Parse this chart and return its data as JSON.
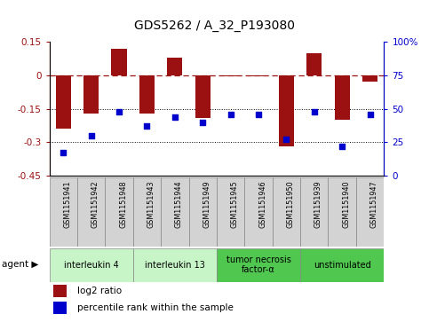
{
  "title": "GDS5262 / A_32_P193080",
  "samples": [
    "GSM1151941",
    "GSM1151942",
    "GSM1151948",
    "GSM1151943",
    "GSM1151944",
    "GSM1151949",
    "GSM1151945",
    "GSM1151946",
    "GSM1151950",
    "GSM1151939",
    "GSM1151940",
    "GSM1151947"
  ],
  "log2_ratio": [
    -0.24,
    -0.17,
    0.12,
    -0.17,
    0.08,
    -0.19,
    -0.005,
    -0.005,
    -0.32,
    0.1,
    -0.2,
    -0.03
  ],
  "percentile": [
    17,
    30,
    48,
    37,
    44,
    40,
    46,
    46,
    27,
    48,
    22,
    46
  ],
  "agents": [
    {
      "label": "interleukin 4",
      "start": 0,
      "end": 3,
      "color": "#c8f5c8"
    },
    {
      "label": "interleukin 13",
      "start": 3,
      "end": 6,
      "color": "#c8f5c8"
    },
    {
      "label": "tumor necrosis\nfactor-α",
      "start": 6,
      "end": 9,
      "color": "#50c850"
    },
    {
      "label": "unstimulated",
      "start": 9,
      "end": 12,
      "color": "#50c850"
    }
  ],
  "ylim_left": [
    -0.45,
    0.15
  ],
  "ylim_right": [
    0,
    100
  ],
  "yticks_left": [
    0.15,
    0.0,
    -0.15,
    -0.3,
    -0.45
  ],
  "yticklabels_left": [
    "0.15",
    "0",
    "-0.15",
    "-0.3",
    "-0.45"
  ],
  "yticks_right": [
    100,
    75,
    50,
    25,
    0
  ],
  "yticklabels_right": [
    "100%",
    "75",
    "50",
    "25",
    "0"
  ],
  "bar_color": "#9b1010",
  "scatter_color": "#0000cc",
  "hline_y": 0,
  "dotted_hlines": [
    -0.15,
    -0.3
  ],
  "legend_items": [
    {
      "label": "log2 ratio",
      "color": "#9b1010"
    },
    {
      "label": "percentile rank within the sample",
      "color": "#0000cc"
    }
  ]
}
